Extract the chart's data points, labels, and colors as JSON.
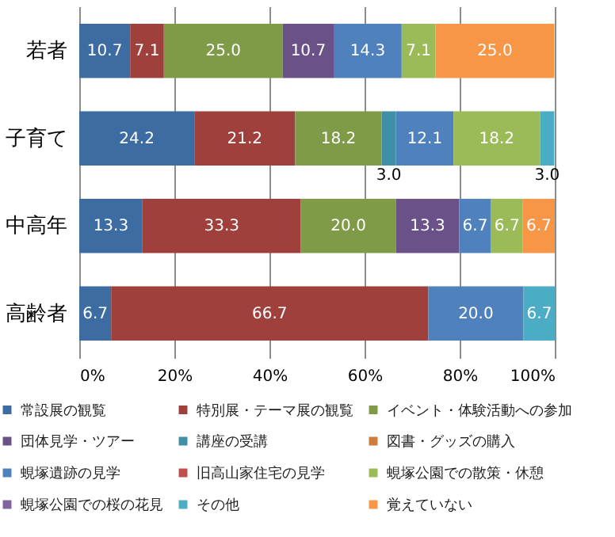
{
  "chart_data": {
    "type": "bar",
    "orientation": "horizontal",
    "stacked": true,
    "categories": [
      "若者",
      "子育て",
      "中高年",
      "高齢者"
    ],
    "series": [
      {
        "name": "常設展の観覧",
        "color": "#3d6ca3",
        "values": [
          10.7,
          24.2,
          13.3,
          6.7
        ],
        "value_labels": [
          "10.7",
          "24.2",
          "13.3",
          "6.7"
        ]
      },
      {
        "name": "特別展・テーマ展の観覧",
        "color": "#a0403d",
        "values": [
          7.1,
          21.2,
          33.3,
          66.7
        ],
        "value_labels": [
          "7.1",
          "21.2",
          "33.3",
          "66.7"
        ]
      },
      {
        "name": "イベント・体験活動への参加",
        "color": "#7f9b48",
        "values": [
          25.0,
          18.2,
          20.0,
          null
        ],
        "value_labels": [
          "25.0",
          "18.2",
          "20.0",
          null
        ]
      },
      {
        "name": "団体見学・ツアー",
        "color": "#6a5288",
        "values": [
          10.7,
          null,
          13.3,
          null
        ],
        "value_labels": [
          "10.7",
          null,
          "13.3",
          null
        ]
      },
      {
        "name": "講座の受講",
        "color": "#3f90a6",
        "values": [
          null,
          3.0,
          null,
          null
        ],
        "value_labels": [
          null,
          "3.0",
          null,
          null
        ]
      },
      {
        "name": "図書・グッズの購入",
        "color": "#d07c3a",
        "values": [
          null,
          null,
          null,
          null
        ]
      },
      {
        "name": "蜆塚遺跡の見学",
        "color": "#4f81bd",
        "values": [
          14.3,
          12.1,
          6.7,
          20.0
        ],
        "value_labels": [
          "14.3",
          "12.1",
          "6.7",
          "20.0"
        ]
      },
      {
        "name": "旧高山家住宅の見学",
        "color": "#c0504d",
        "values": [
          null,
          null,
          null,
          null
        ]
      },
      {
        "name": "蜆塚公園での散策・休憩",
        "color": "#9bbb59",
        "values": [
          7.1,
          18.2,
          6.7,
          null
        ],
        "value_labels": [
          "7.1",
          "18.2",
          "6.7",
          null
        ]
      },
      {
        "name": "蜆塚公園での桜の花見",
        "color": "#8064a2",
        "values": [
          null,
          null,
          null,
          null
        ]
      },
      {
        "name": "その他",
        "color": "#4bacc6",
        "values": [
          null,
          3.0,
          null,
          6.7
        ],
        "value_labels": [
          null,
          "3.0",
          null,
          "6.7"
        ]
      },
      {
        "name": "覚えていない",
        "color": "#f79646",
        "values": [
          25.0,
          null,
          6.7,
          null
        ],
        "value_labels": [
          "25.0",
          null,
          "6.7",
          null
        ]
      }
    ],
    "xlim": [
      0,
      100
    ],
    "xticks": [
      {
        "value": 0,
        "label": "0%"
      },
      {
        "value": 20,
        "label": "20%"
      },
      {
        "value": 40,
        "label": "40%"
      },
      {
        "value": 60,
        "label": "60%"
      },
      {
        "value": 80,
        "label": "80%"
      },
      {
        "value": 100,
        "label": "100%"
      }
    ],
    "grid": "x",
    "legend": "bottom"
  }
}
